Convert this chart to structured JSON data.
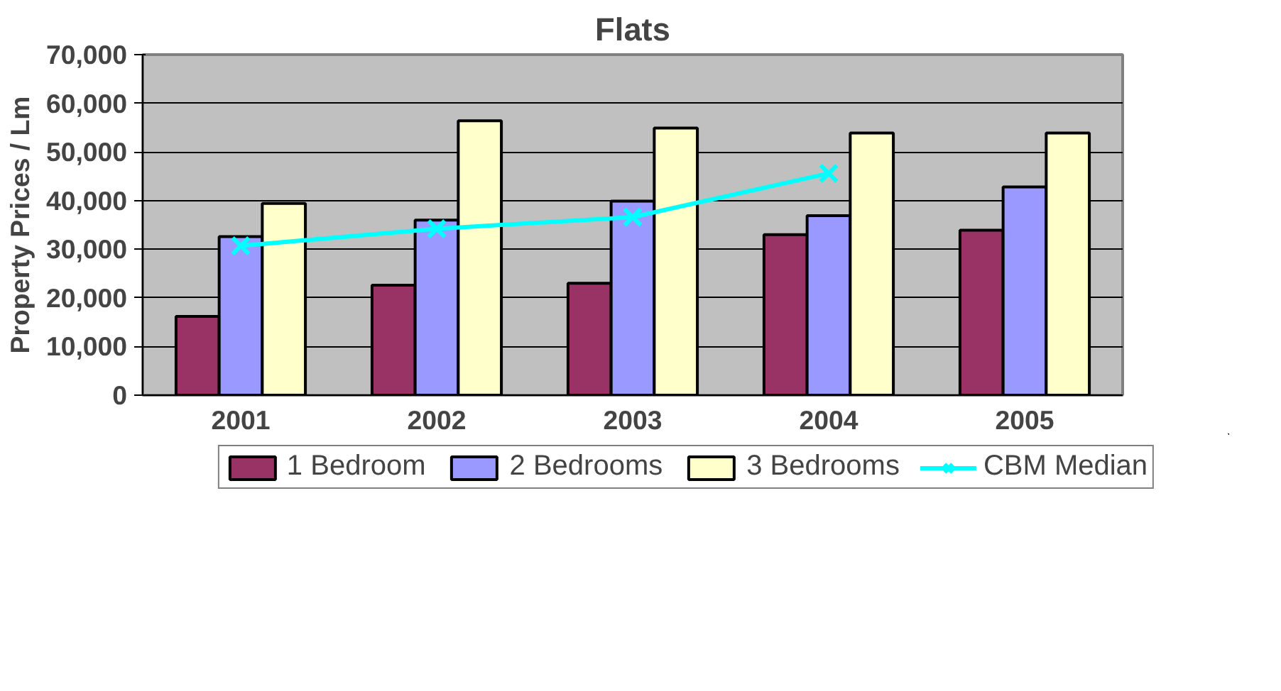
{
  "chart_data": {
    "type": "bar",
    "title": "Flats",
    "ylabel": "Property Prices / Lm",
    "categories": [
      "2001",
      "2002",
      "2003",
      "2004",
      "2005"
    ],
    "series": [
      {
        "name": "1 Bedroom",
        "color": "#993366",
        "values": [
          16200,
          22600,
          23000,
          33000,
          33900
        ]
      },
      {
        "name": "2 Bedrooms",
        "color": "#9999ff",
        "values": [
          32600,
          36000,
          39900,
          36900,
          42800
        ]
      },
      {
        "name": "3 Bedrooms",
        "color": "#ffffcc",
        "values": [
          39400,
          56400,
          54900,
          53900,
          53900
        ]
      },
      {
        "name": "CBM Median",
        "color": "#00ffff",
        "type": "line",
        "marker": "cross",
        "values": [
          30700,
          34200,
          36600,
          45600,
          null
        ]
      }
    ],
    "ylim": [
      0,
      70000
    ],
    "yticks": [
      {
        "value": 0,
        "label": "0"
      },
      {
        "value": 10000,
        "label": "10,000"
      },
      {
        "value": 20000,
        "label": "20,000"
      },
      {
        "value": 30000,
        "label": "30,000"
      },
      {
        "value": 40000,
        "label": "40,000"
      },
      {
        "value": 50000,
        "label": "50,000"
      },
      {
        "value": 60000,
        "label": "60,000"
      },
      {
        "value": 70000,
        "label": "70,000"
      }
    ],
    "grid": "y",
    "legend": "bottom"
  }
}
